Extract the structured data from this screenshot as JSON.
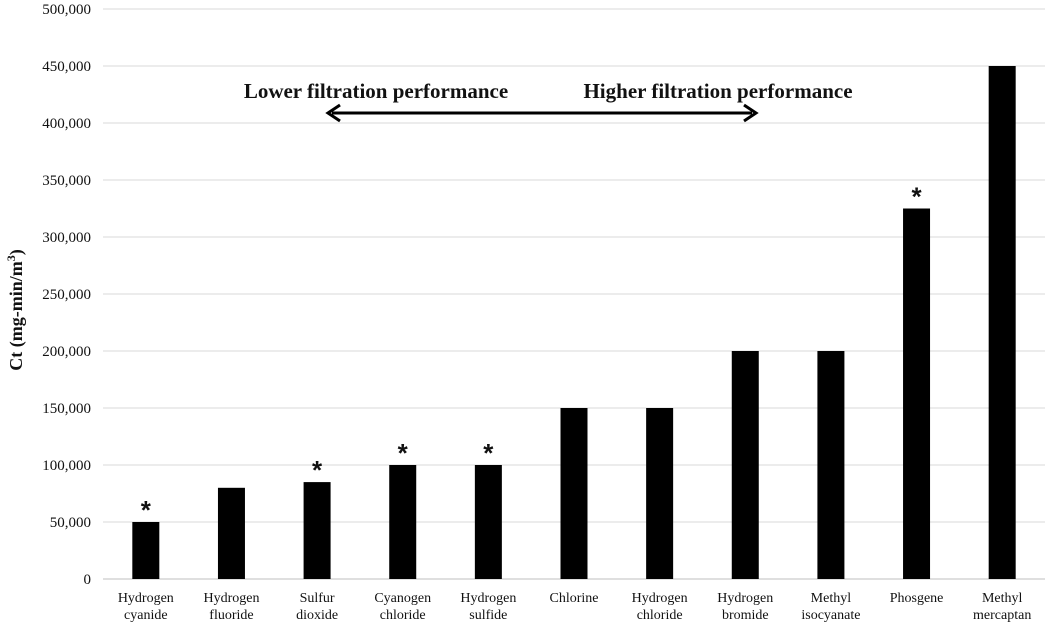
{
  "chart_data": {
    "type": "bar",
    "categories": [
      [
        "Hydrogen",
        "cyanide"
      ],
      [
        "Hydrogen",
        "fluoride"
      ],
      [
        "Sulfur",
        "dioxide"
      ],
      [
        "Cyanogen",
        "chloride"
      ],
      [
        "Hydrogen",
        "sulfide"
      ],
      [
        "Chlorine"
      ],
      [
        "Hydrogen",
        "chloride"
      ],
      [
        "Hydrogen",
        "bromide"
      ],
      [
        "Methyl",
        "isocyanate"
      ],
      [
        "Phosgene"
      ],
      [
        "Methyl",
        "mercaptan"
      ]
    ],
    "values": [
      50000,
      80000,
      85000,
      100000,
      100000,
      150000,
      150000,
      200000,
      200000,
      325000,
      450000
    ],
    "markers": [
      "*",
      "",
      "*",
      "*",
      "*",
      "",
      "",
      "",
      "",
      "*",
      ""
    ],
    "ylabel_main": "Ct (mg-min/m",
    "ylabel_sup": "3",
    "ylabel_close": ")",
    "ylim": [
      0,
      500000
    ],
    "yticks": [
      0,
      50000,
      100000,
      150000,
      200000,
      250000,
      300000,
      350000,
      400000,
      450000,
      500000
    ],
    "ytick_labels": [
      "0",
      "50,000",
      "100,000",
      "150,000",
      "200,000",
      "250,000",
      "300,000",
      "350,000",
      "400,000",
      "450,000",
      "500,000"
    ],
    "grid": true,
    "bar_color": "#000000",
    "annotations": {
      "left": "Lower filtration performance",
      "right": "Higher filtration performance",
      "arrow": "double-headed"
    }
  }
}
